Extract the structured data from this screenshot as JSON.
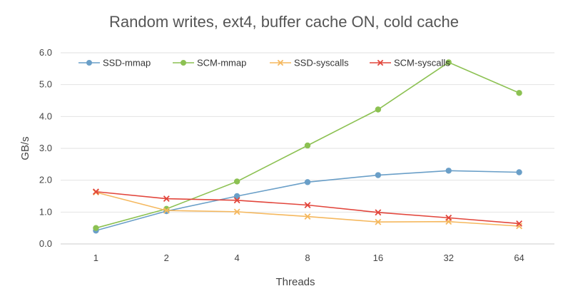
{
  "chart_data": {
    "type": "line",
    "title": "Random writes, ext4, buffer cache ON, cold cache",
    "xlabel": "Threads",
    "ylabel": "GB/s",
    "categories": [
      "1",
      "2",
      "4",
      "8",
      "16",
      "32",
      "64"
    ],
    "ylim": [
      0,
      6
    ],
    "yticks": [
      "0.0",
      "1.0",
      "2.0",
      "3.0",
      "4.0",
      "5.0",
      "6.0"
    ],
    "grid": "horizontal",
    "legend_position": "top-left",
    "series": [
      {
        "name": "SSD-mmap",
        "color": "#6a9fc8",
        "marker": "circle",
        "values": [
          0.42,
          1.03,
          1.5,
          1.94,
          2.16,
          2.3,
          2.25
        ]
      },
      {
        "name": "SCM-mmap",
        "color": "#8cc152",
        "marker": "circle",
        "values": [
          0.5,
          1.1,
          1.96,
          3.09,
          4.22,
          5.7,
          4.74
        ]
      },
      {
        "name": "SSD-syscalls",
        "color": "#f5b85e",
        "marker": "x",
        "values": [
          1.62,
          1.05,
          1.01,
          0.86,
          0.69,
          0.7,
          0.56
        ]
      },
      {
        "name": "SCM-syscalls",
        "color": "#e2463c",
        "marker": "x",
        "values": [
          1.64,
          1.42,
          1.37,
          1.22,
          0.99,
          0.82,
          0.64
        ]
      }
    ]
  }
}
